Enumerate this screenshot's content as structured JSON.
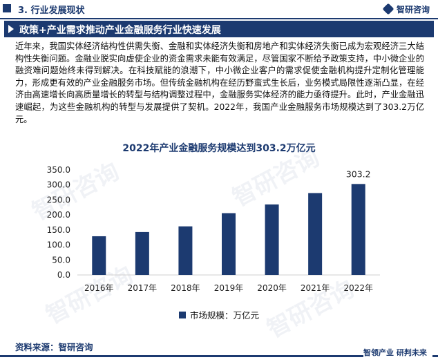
{
  "section": {
    "title": "3. 行业发展现状"
  },
  "brand": {
    "name": "智研咨询",
    "slogan": "智领产业 研判未来"
  },
  "banner": {
    "title": "政策+产业需求推动产业金融服务行业快速发展"
  },
  "body": {
    "paragraph": "近年来，我国实体经济结构性供需失衡、金融和实体经济失衡和房地产和实体经济失衡已成为宏观经济三大结构性失衡问题。金融业脱实向虚使企业的资金需求未能有效满足，尽管国家不断给予政策支持，中小微企业的融资难问题始终未得到解决。在科技赋能的浪潮下，中小微企业客户的需求促使金融机构提升定制化管理能力，形成更有效的产业金融服务市场。但传统金融机构在经历野蛮式生长后，业务模式局限性逐渐凸显，在经济由高速增长向高质量增长的转型与结构调整过程中，金融服务实体经济的能力亟待提升。此时，产业金融迅速崛起，为这些金融机构的转型与发展提供了契机。2022年，我国产业金融服务市场规模达到了303.2万亿元。"
  },
  "chart_data": {
    "type": "bar",
    "title": "2022年产业金融服务规模达到303.2万亿元",
    "categories": [
      "2016年",
      "2017年",
      "2018年",
      "2019年",
      "2020年",
      "2021年",
      "2022年"
    ],
    "series": [
      {
        "name": "市场规模：万亿元",
        "values": [
          129,
          143,
          162,
          206,
          235,
          273,
          303.2
        ]
      }
    ],
    "data_labels": [
      {
        "index": 6,
        "text": "303.2"
      }
    ],
    "ylim": [
      0,
      350
    ],
    "yticks": [
      "0.0",
      "50.0",
      "100.0",
      "150.0",
      "200.0",
      "250.0",
      "300.0",
      "350.0"
    ],
    "xlabel": "",
    "ylabel": "",
    "grid": false,
    "legend_position": "bottom",
    "bar_color": "#1c3a70"
  },
  "footer": {
    "source": "资料来源：智研咨询"
  },
  "watermark": {
    "text": "智研咨询"
  }
}
